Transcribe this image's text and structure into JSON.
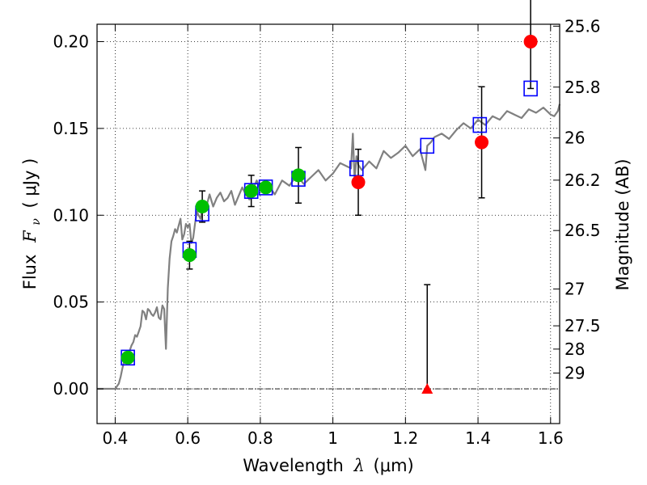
{
  "chart_data": {
    "type": "scatter",
    "title": "",
    "xlabel_prefix": "Wavelength",
    "xlabel_symbol": "λ",
    "xlabel_units": "(μm)",
    "ylabel_prefix": "Flux",
    "ylabel_symbol_main": "F",
    "ylabel_symbol_sub": "ν",
    "ylabel_units": "( μJy )",
    "y2label": "Magnitude (AB)",
    "xlim": [
      0.35,
      1.625
    ],
    "ylim": [
      -0.02,
      0.21
    ],
    "grid": true,
    "xticks": [
      0.4,
      0.6,
      0.8,
      1.0,
      1.2,
      1.4,
      1.6
    ],
    "xtick_labels": [
      "0.4",
      "0.6",
      "0.8",
      "1",
      "1.2",
      "1.4",
      "1.6"
    ],
    "yticks": [
      0.0,
      0.05,
      0.1,
      0.15,
      0.2
    ],
    "ytick_labels": [
      "0.00",
      "0.05",
      "0.10",
      "0.15",
      "0.20"
    ],
    "right_ticks": [
      {
        "label": "25.6",
        "flux": 0.2089
      },
      {
        "label": "25.8",
        "flux": 0.1738
      },
      {
        "label": "26",
        "flux": 0.1445
      },
      {
        "label": "26.2",
        "flux": 0.1202
      },
      {
        "label": "26.5",
        "flux": 0.0912
      },
      {
        "label": "27",
        "flux": 0.0575
      },
      {
        "label": "27.5",
        "flux": 0.0363
      },
      {
        "label": "28",
        "flux": 0.0229
      },
      {
        "label": "29",
        "flux": 0.0091
      }
    ],
    "series": [
      {
        "kind": "line",
        "color": "#808080",
        "x": [
          0.35,
          0.4,
          0.41,
          0.415,
          0.42,
          0.425,
          0.43,
          0.435,
          0.44,
          0.445,
          0.45,
          0.455,
          0.46,
          0.465,
          0.47,
          0.475,
          0.48,
          0.485,
          0.49,
          0.495,
          0.5,
          0.505,
          0.51,
          0.515,
          0.52,
          0.525,
          0.53,
          0.535,
          0.54,
          0.545,
          0.55,
          0.555,
          0.56,
          0.565,
          0.57,
          0.575,
          0.58,
          0.585,
          0.59,
          0.595,
          0.6,
          0.605,
          0.61,
          0.615,
          0.62,
          0.625,
          0.63,
          0.635,
          0.64,
          0.645,
          0.65,
          0.66,
          0.67,
          0.68,
          0.69,
          0.7,
          0.71,
          0.72,
          0.73,
          0.74,
          0.75,
          0.76,
          0.77,
          0.78,
          0.79,
          0.8,
          0.82,
          0.84,
          0.86,
          0.88,
          0.9,
          0.92,
          0.94,
          0.96,
          0.98,
          1.0,
          1.02,
          1.04,
          1.05,
          1.055,
          1.06,
          1.065,
          1.07,
          1.08,
          1.1,
          1.12,
          1.14,
          1.16,
          1.18,
          1.2,
          1.22,
          1.24,
          1.25,
          1.255,
          1.26,
          1.27,
          1.28,
          1.3,
          1.32,
          1.34,
          1.36,
          1.38,
          1.4,
          1.42,
          1.44,
          1.46,
          1.48,
          1.5,
          1.52,
          1.54,
          1.56,
          1.58,
          1.6,
          1.61,
          1.62,
          1.625
        ],
        "y": [
          0.0,
          0.0,
          0.003,
          0.007,
          0.012,
          0.016,
          0.02,
          0.018,
          0.022,
          0.025,
          0.027,
          0.031,
          0.03,
          0.033,
          0.036,
          0.045,
          0.044,
          0.04,
          0.046,
          0.045,
          0.043,
          0.042,
          0.044,
          0.047,
          0.041,
          0.04,
          0.048,
          0.046,
          0.023,
          0.058,
          0.075,
          0.085,
          0.088,
          0.092,
          0.09,
          0.094,
          0.098,
          0.086,
          0.089,
          0.095,
          0.093,
          0.095,
          0.084,
          0.087,
          0.095,
          0.102,
          0.1,
          0.098,
          0.103,
          0.105,
          0.104,
          0.112,
          0.105,
          0.11,
          0.113,
          0.108,
          0.11,
          0.114,
          0.106,
          0.111,
          0.116,
          0.112,
          0.109,
          0.115,
          0.12,
          0.115,
          0.118,
          0.112,
          0.12,
          0.117,
          0.123,
          0.118,
          0.122,
          0.126,
          0.12,
          0.124,
          0.13,
          0.128,
          0.127,
          0.147,
          0.12,
          0.134,
          0.129,
          0.126,
          0.131,
          0.127,
          0.137,
          0.133,
          0.136,
          0.14,
          0.134,
          0.138,
          0.13,
          0.126,
          0.14,
          0.142,
          0.145,
          0.147,
          0.144,
          0.149,
          0.153,
          0.15,
          0.155,
          0.152,
          0.157,
          0.155,
          0.16,
          0.158,
          0.156,
          0.161,
          0.159,
          0.162,
          0.158,
          0.157,
          0.16,
          0.164
        ]
      },
      {
        "kind": "marker",
        "marker": "square",
        "color": "#0000ff",
        "x": [
          0.435,
          0.605,
          0.64,
          0.775,
          0.815,
          0.905,
          1.065,
          1.26,
          1.405,
          1.545
        ],
        "y": [
          0.018,
          0.08,
          0.101,
          0.114,
          0.116,
          0.121,
          0.127,
          0.14,
          0.152,
          0.173
        ]
      },
      {
        "kind": "marker",
        "marker": "circle",
        "color": "#00c000",
        "x": [
          0.435,
          0.605,
          0.64,
          0.775,
          0.815,
          0.905
        ],
        "y": [
          0.018,
          0.077,
          0.105,
          0.114,
          0.116,
          0.123
        ],
        "yerr": [
          null,
          0.008,
          0.009,
          0.009,
          null,
          0.016
        ]
      },
      {
        "kind": "marker",
        "marker": "circle",
        "color": "#ff0000",
        "x": [
          1.07,
          1.41,
          1.545
        ],
        "y": [
          0.119,
          0.142,
          0.2
        ],
        "yerr": [
          0.019,
          0.032,
          0.027
        ]
      },
      {
        "kind": "marker",
        "marker": "triangle",
        "color": "#ff0000",
        "x": [
          1.26
        ],
        "y": [
          0.0
        ],
        "yerr_up": [
          0.06
        ]
      }
    ]
  }
}
